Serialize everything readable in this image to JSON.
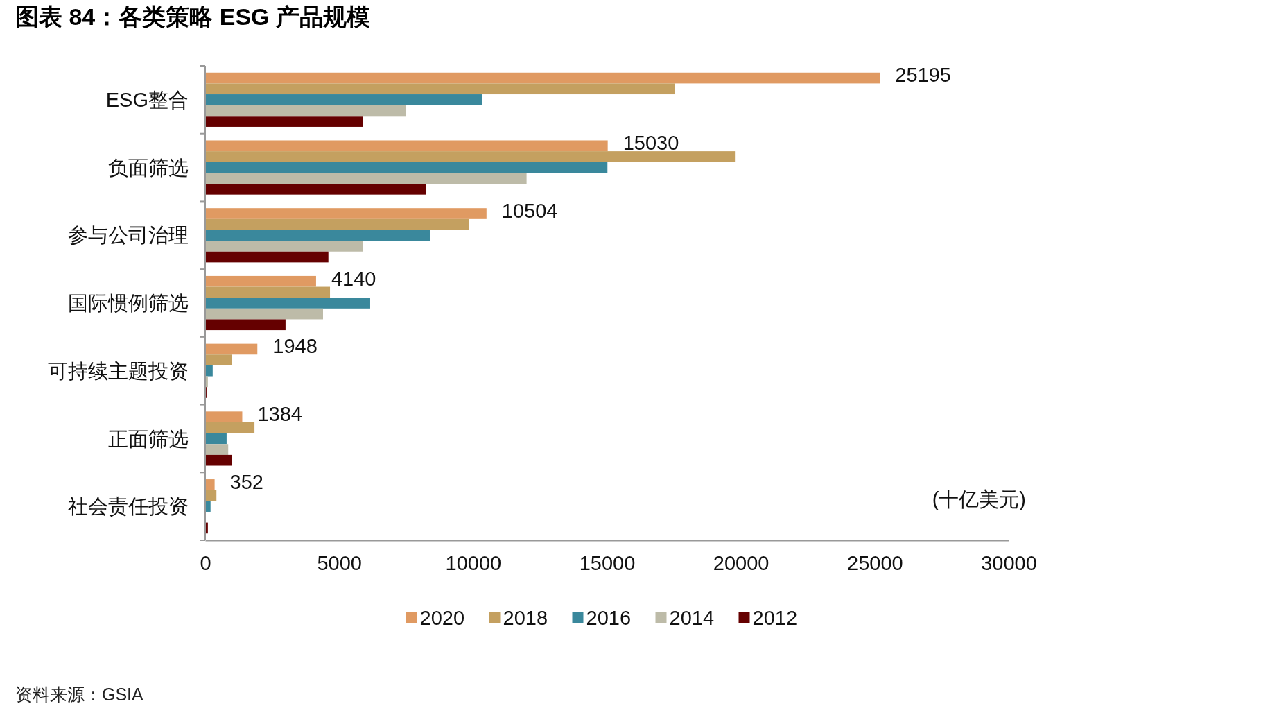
{
  "chart_data": {
    "type": "bar",
    "orientation": "horizontal",
    "title": "图表 84：各类策略 ESG 产品规模",
    "categories": [
      "ESG整合",
      "负面筛选",
      "参与公司治理",
      "国际惯例筛选",
      "可持续主题投资",
      "正面筛选",
      "社会责任投资"
    ],
    "series": [
      {
        "name": "2020",
        "color": "#e09a62",
        "values": [
          25195,
          15030,
          10504,
          4140,
          1948,
          1384,
          352
        ],
        "value_labels": [
          "25195",
          "15030",
          "10504",
          "4140",
          "1948",
          "1384",
          "352"
        ]
      },
      {
        "name": "2018",
        "color": "#c4a060",
        "values": [
          17540,
          19780,
          9850,
          4660,
          1000,
          1840,
          420
        ]
      },
      {
        "name": "2016",
        "color": "#3a889c",
        "values": [
          10350,
          15020,
          8400,
          6160,
          280,
          800,
          200
        ]
      },
      {
        "name": "2014",
        "color": "#bdbba8",
        "values": [
          7500,
          12000,
          5900,
          4400,
          100,
          860,
          null
        ]
      },
      {
        "name": "2012",
        "color": "#650000",
        "values": [
          5900,
          8250,
          4600,
          3000,
          50,
          1000,
          100
        ]
      }
    ],
    "xlim": [
      0,
      30000
    ],
    "xticks": [
      0,
      5000,
      10000,
      15000,
      20000,
      25000,
      30000
    ],
    "grid": false,
    "legend": "bottom",
    "annotations": [
      "(十亿美元)",
      "资料来源：GSIA"
    ]
  }
}
